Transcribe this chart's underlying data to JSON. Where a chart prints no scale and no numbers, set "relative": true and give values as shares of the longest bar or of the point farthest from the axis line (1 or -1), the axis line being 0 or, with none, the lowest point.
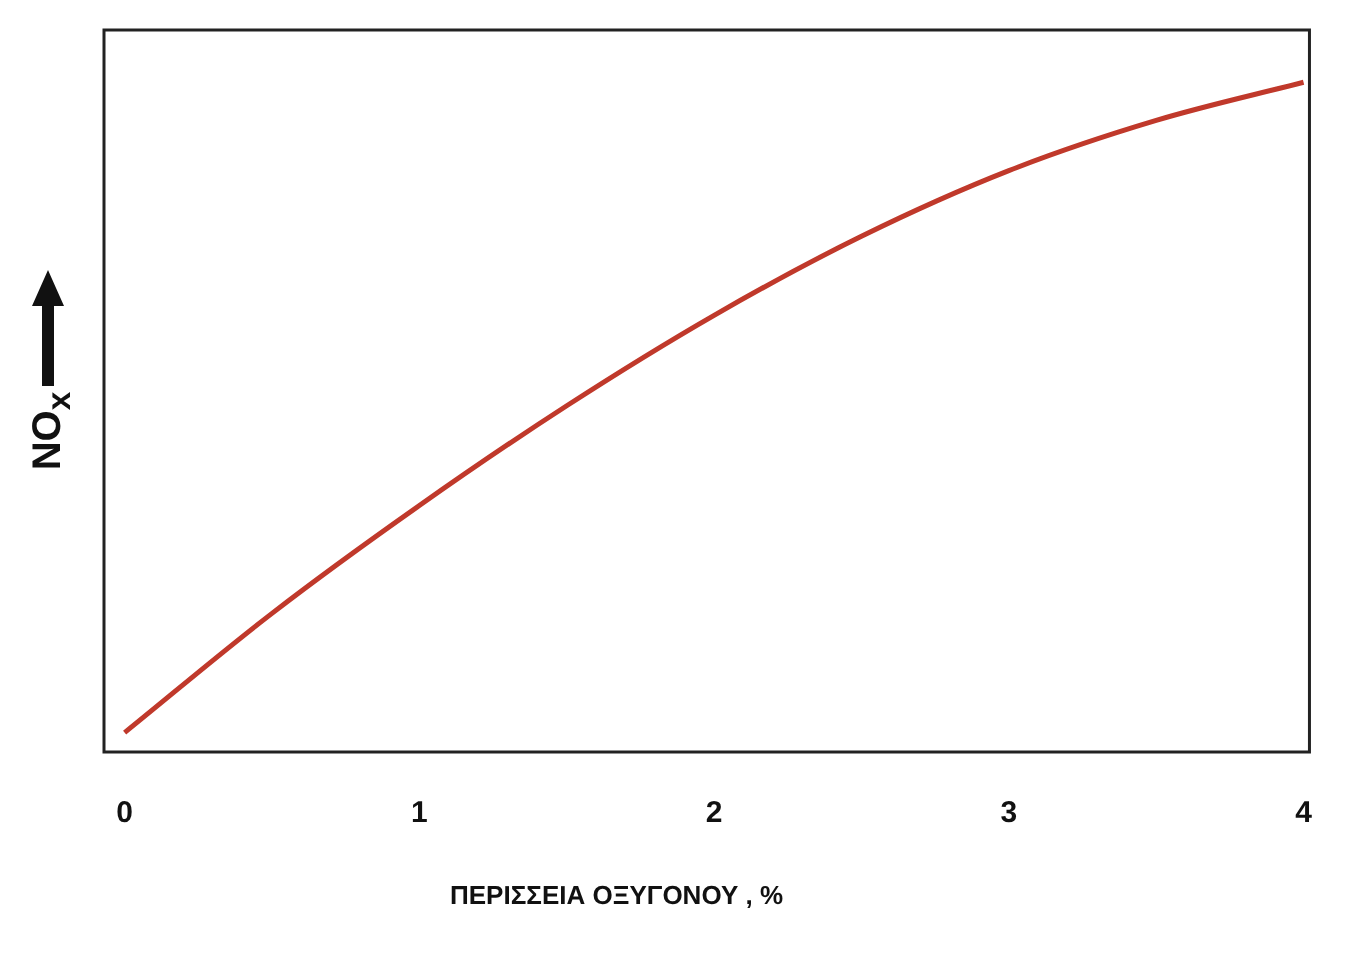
{
  "chart_data": {
    "type": "line",
    "xlabel": "ΠΕΡΙΣΣΕΙΑ ΟΞΥΓΟΝΟΥ , %",
    "ylabel": "NO$_{x}$",
    "relative": true,
    "x": [
      0,
      0.5,
      1,
      1.5,
      2,
      2.5,
      3,
      3.5,
      4
    ],
    "xlim": [
      -0.07,
      4.02
    ],
    "xticks": [
      0,
      1,
      2,
      3,
      4
    ],
    "series": [
      {
        "color": "#c0392b",
        "values": [
          0.029,
          0.207,
          0.368,
          0.517,
          0.652,
          0.77,
          0.868,
          0.943,
          1
        ]
      }
    ],
    "grid": false,
    "legend": false,
    "marker": "none",
    "line_style": "solid"
  }
}
